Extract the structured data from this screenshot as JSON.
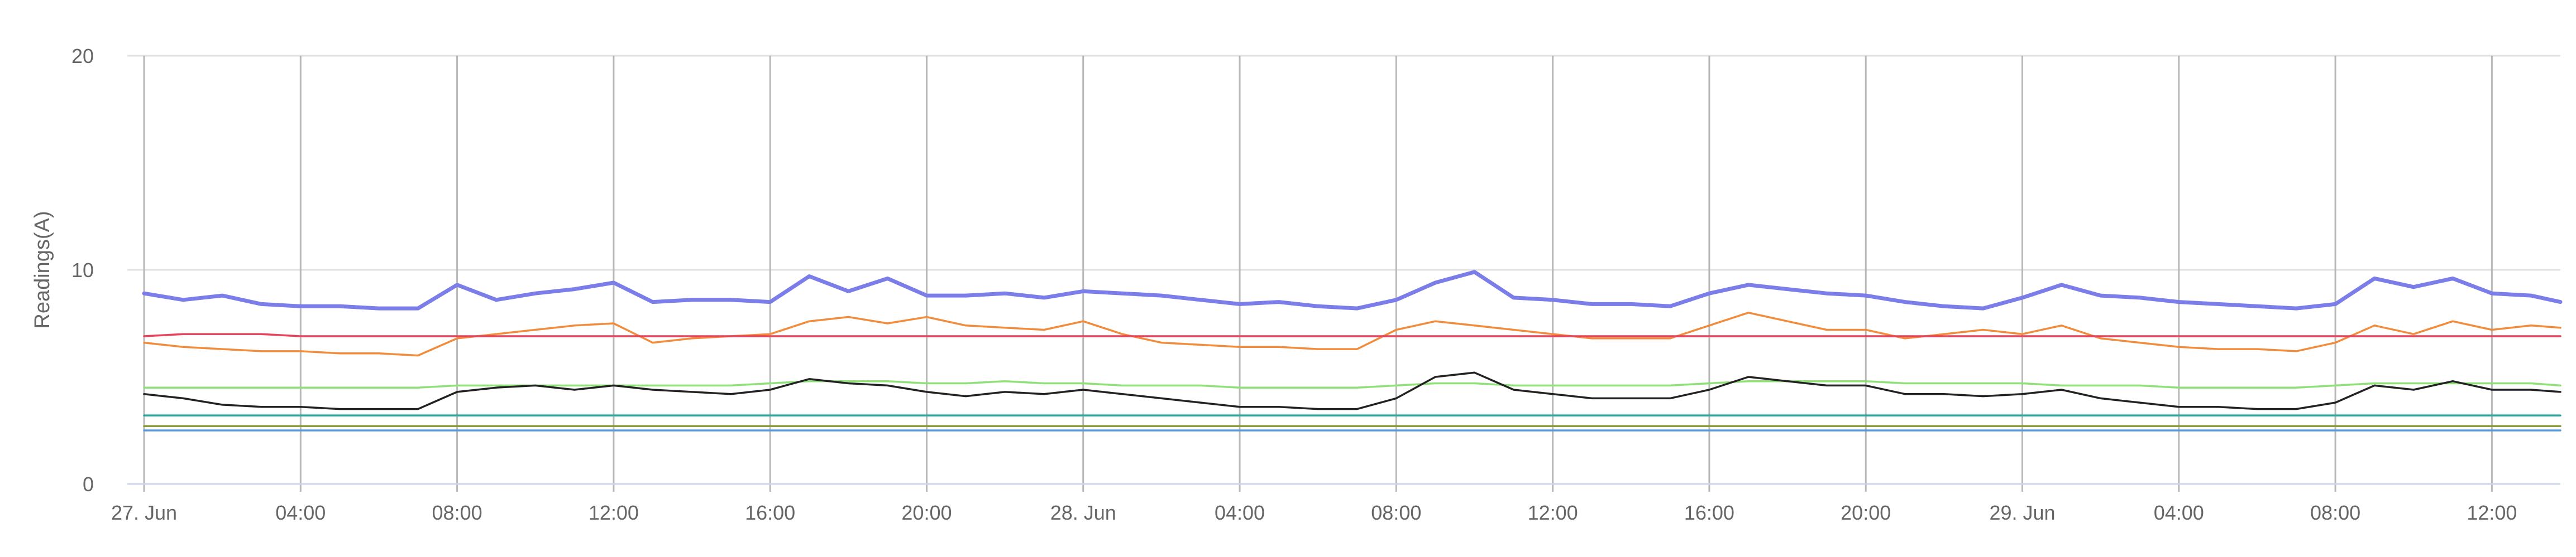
{
  "chart_data": {
    "type": "line",
    "title": "",
    "xlabel": "",
    "ylabel": "Readings(A)",
    "ylim": [
      0,
      20
    ],
    "yticks": [
      "0",
      "10",
      "20"
    ],
    "xlim": [
      "2024-06-27T00:00",
      "2024-06-29T13:45"
    ],
    "xticks": [
      {
        "t": "2024-06-27T00:00",
        "label": "27. Jun"
      },
      {
        "t": "2024-06-27T04:00",
        "label": "04:00"
      },
      {
        "t": "2024-06-27T08:00",
        "label": "08:00"
      },
      {
        "t": "2024-06-27T12:00",
        "label": "12:00"
      },
      {
        "t": "2024-06-27T16:00",
        "label": "16:00"
      },
      {
        "t": "2024-06-27T20:00",
        "label": "20:00"
      },
      {
        "t": "2024-06-28T00:00",
        "label": "28. Jun"
      },
      {
        "t": "2024-06-28T04:00",
        "label": "04:00"
      },
      {
        "t": "2024-06-28T08:00",
        "label": "08:00"
      },
      {
        "t": "2024-06-28T12:00",
        "label": "12:00"
      },
      {
        "t": "2024-06-28T16:00",
        "label": "16:00"
      },
      {
        "t": "2024-06-28T20:00",
        "label": "20:00"
      },
      {
        "t": "2024-06-29T00:00",
        "label": "29. Jun"
      },
      {
        "t": "2024-06-29T04:00",
        "label": "04:00"
      },
      {
        "t": "2024-06-29T08:00",
        "label": "08:00"
      },
      {
        "t": "2024-06-29T12:00",
        "label": "12:00"
      }
    ],
    "grid": true,
    "legend": "none",
    "x": [
      "2024-06-27T00:00",
      "2024-06-27T01:00",
      "2024-06-27T02:00",
      "2024-06-27T03:00",
      "2024-06-27T04:00",
      "2024-06-27T05:00",
      "2024-06-27T06:00",
      "2024-06-27T07:00",
      "2024-06-27T08:00",
      "2024-06-27T09:00",
      "2024-06-27T10:00",
      "2024-06-27T11:00",
      "2024-06-27T12:00",
      "2024-06-27T13:00",
      "2024-06-27T14:00",
      "2024-06-27T15:00",
      "2024-06-27T16:00",
      "2024-06-27T17:00",
      "2024-06-27T18:00",
      "2024-06-27T19:00",
      "2024-06-27T20:00",
      "2024-06-27T21:00",
      "2024-06-27T22:00",
      "2024-06-27T23:00",
      "2024-06-28T00:00",
      "2024-06-28T01:00",
      "2024-06-28T02:00",
      "2024-06-28T03:00",
      "2024-06-28T04:00",
      "2024-06-28T05:00",
      "2024-06-28T06:00",
      "2024-06-28T07:00",
      "2024-06-28T08:00",
      "2024-06-28T09:00",
      "2024-06-28T10:00",
      "2024-06-28T11:00",
      "2024-06-28T12:00",
      "2024-06-28T13:00",
      "2024-06-28T14:00",
      "2024-06-28T15:00",
      "2024-06-28T16:00",
      "2024-06-28T17:00",
      "2024-06-28T18:00",
      "2024-06-28T19:00",
      "2024-06-28T20:00",
      "2024-06-28T21:00",
      "2024-06-28T22:00",
      "2024-06-28T23:00",
      "2024-06-29T00:00",
      "2024-06-29T01:00",
      "2024-06-29T02:00",
      "2024-06-29T03:00",
      "2024-06-29T04:00",
      "2024-06-29T05:00",
      "2024-06-29T06:00",
      "2024-06-29T07:00",
      "2024-06-29T08:00",
      "2024-06-29T09:00",
      "2024-06-29T10:00",
      "2024-06-29T11:00",
      "2024-06-29T12:00",
      "2024-06-29T13:00",
      "2024-06-29T13:45"
    ],
    "series": [
      {
        "color": "#7b7de8",
        "values": [
          8.9,
          8.6,
          8.8,
          8.4,
          8.3,
          8.3,
          8.2,
          8.2,
          9.3,
          8.6,
          8.9,
          9.1,
          9.4,
          8.5,
          8.6,
          8.6,
          8.5,
          9.7,
          9.0,
          9.6,
          8.8,
          8.8,
          8.9,
          8.7,
          9.0,
          8.9,
          8.8,
          8.6,
          8.4,
          8.5,
          8.3,
          8.2,
          8.6,
          9.4,
          9.9,
          8.7,
          8.6,
          8.4,
          8.4,
          8.3,
          8.9,
          9.3,
          9.1,
          8.9,
          8.8,
          8.5,
          8.3,
          8.2,
          8.7,
          9.3,
          8.8,
          8.7,
          8.5,
          8.4,
          8.3,
          8.2,
          8.4,
          9.6,
          9.2,
          9.6,
          8.9,
          8.8,
          8.5
        ]
      },
      {
        "color": "#f08c3c",
        "values": [
          6.6,
          6.4,
          6.3,
          6.2,
          6.2,
          6.1,
          6.1,
          6.0,
          6.8,
          7.0,
          7.2,
          7.4,
          7.5,
          6.6,
          6.8,
          6.9,
          7.0,
          7.6,
          7.8,
          7.5,
          7.8,
          7.4,
          7.3,
          7.2,
          7.6,
          7.0,
          6.6,
          6.5,
          6.4,
          6.4,
          6.3,
          6.3,
          7.2,
          7.6,
          7.4,
          7.2,
          7.0,
          6.8,
          6.8,
          6.8,
          7.4,
          8.0,
          7.6,
          7.2,
          7.2,
          6.8,
          7.0,
          7.2,
          7.0,
          7.4,
          6.8,
          6.6,
          6.4,
          6.3,
          6.3,
          6.2,
          6.6,
          7.4,
          7.0,
          7.6,
          7.2,
          7.4,
          7.3
        ]
      },
      {
        "color": "#e8435a",
        "values": [
          6.9,
          7.0,
          7.0,
          7.0,
          6.9,
          6.9,
          6.9,
          6.9,
          6.9,
          6.9,
          6.9,
          6.9,
          6.9,
          6.9,
          6.9,
          6.9,
          6.9,
          6.9,
          6.9,
          6.9,
          6.9,
          6.9,
          6.9,
          6.9,
          6.9,
          6.9,
          6.9,
          6.9,
          6.9,
          6.9,
          6.9,
          6.9,
          6.9,
          6.9,
          6.9,
          6.9,
          6.9,
          6.9,
          6.9,
          6.9,
          6.9,
          6.9,
          6.9,
          6.9,
          6.9,
          6.9,
          6.9,
          6.9,
          6.9,
          6.9,
          6.9,
          6.9,
          6.9,
          6.9,
          6.9,
          6.9,
          6.9,
          6.9,
          6.9,
          6.9,
          6.9,
          6.9,
          6.9
        ]
      },
      {
        "color": "#90e07a",
        "values": [
          4.5,
          4.5,
          4.5,
          4.5,
          4.5,
          4.5,
          4.5,
          4.5,
          4.6,
          4.6,
          4.6,
          4.6,
          4.6,
          4.6,
          4.6,
          4.6,
          4.7,
          4.8,
          4.8,
          4.8,
          4.7,
          4.7,
          4.8,
          4.7,
          4.7,
          4.6,
          4.6,
          4.6,
          4.5,
          4.5,
          4.5,
          4.5,
          4.6,
          4.7,
          4.7,
          4.6,
          4.6,
          4.6,
          4.6,
          4.6,
          4.7,
          4.8,
          4.8,
          4.8,
          4.8,
          4.7,
          4.7,
          4.7,
          4.7,
          4.6,
          4.6,
          4.6,
          4.5,
          4.5,
          4.5,
          4.5,
          4.6,
          4.7,
          4.7,
          4.7,
          4.7,
          4.7,
          4.6
        ]
      },
      {
        "color": "#222222",
        "values": [
          4.2,
          4.0,
          3.7,
          3.6,
          3.6,
          3.5,
          3.5,
          3.5,
          4.3,
          4.5,
          4.6,
          4.4,
          4.6,
          4.4,
          4.3,
          4.2,
          4.4,
          4.9,
          4.7,
          4.6,
          4.3,
          4.1,
          4.3,
          4.2,
          4.4,
          4.2,
          4.0,
          3.8,
          3.6,
          3.6,
          3.5,
          3.5,
          4.0,
          5.0,
          5.2,
          4.4,
          4.2,
          4.0,
          4.0,
          4.0,
          4.4,
          5.0,
          4.8,
          4.6,
          4.6,
          4.2,
          4.2,
          4.1,
          4.2,
          4.4,
          4.0,
          3.8,
          3.6,
          3.6,
          3.5,
          3.5,
          3.8,
          4.6,
          4.4,
          4.8,
          4.4,
          4.4,
          4.3
        ]
      },
      {
        "color": "#2aa8a0",
        "values": [
          3.2,
          3.2,
          3.2,
          3.2,
          3.2,
          3.2,
          3.2,
          3.2,
          3.2,
          3.2,
          3.2,
          3.2,
          3.2,
          3.2,
          3.2,
          3.2,
          3.2,
          3.2,
          3.2,
          3.2,
          3.2,
          3.2,
          3.2,
          3.2,
          3.2,
          3.2,
          3.2,
          3.2,
          3.2,
          3.2,
          3.2,
          3.2,
          3.2,
          3.2,
          3.2,
          3.2,
          3.2,
          3.2,
          3.2,
          3.2,
          3.2,
          3.2,
          3.2,
          3.2,
          3.2,
          3.2,
          3.2,
          3.2,
          3.2,
          3.2,
          3.2,
          3.2,
          3.2,
          3.2,
          3.2,
          3.2,
          3.2,
          3.2,
          3.2,
          3.2,
          3.2,
          3.2,
          3.2
        ]
      },
      {
        "color": "#8c9a3a",
        "values": [
          2.7,
          2.7,
          2.7,
          2.7,
          2.7,
          2.7,
          2.7,
          2.7,
          2.7,
          2.7,
          2.7,
          2.7,
          2.7,
          2.7,
          2.7,
          2.7,
          2.7,
          2.7,
          2.7,
          2.7,
          2.7,
          2.7,
          2.7,
          2.7,
          2.7,
          2.7,
          2.7,
          2.7,
          2.7,
          2.7,
          2.7,
          2.7,
          2.7,
          2.7,
          2.7,
          2.7,
          2.7,
          2.7,
          2.7,
          2.7,
          2.7,
          2.7,
          2.7,
          2.7,
          2.7,
          2.7,
          2.7,
          2.7,
          2.7,
          2.7,
          2.7,
          2.7,
          2.7,
          2.7,
          2.7,
          2.7,
          2.7,
          2.7,
          2.7,
          2.7,
          2.7,
          2.7,
          2.7
        ]
      },
      {
        "color": "#5b9bd5",
        "values": [
          2.5,
          2.5,
          2.5,
          2.5,
          2.5,
          2.5,
          2.5,
          2.5,
          2.5,
          2.5,
          2.5,
          2.5,
          2.5,
          2.5,
          2.5,
          2.5,
          2.5,
          2.5,
          2.5,
          2.5,
          2.5,
          2.5,
          2.5,
          2.5,
          2.5,
          2.5,
          2.5,
          2.5,
          2.5,
          2.5,
          2.5,
          2.5,
          2.5,
          2.5,
          2.5,
          2.5,
          2.5,
          2.5,
          2.5,
          2.5,
          2.5,
          2.5,
          2.5,
          2.5,
          2.5,
          2.5,
          2.5,
          2.5,
          2.5,
          2.5,
          2.5,
          2.5,
          2.5,
          2.5,
          2.5,
          2.5,
          2.5,
          2.5,
          2.5,
          2.5,
          2.5,
          2.5,
          2.5
        ]
      }
    ]
  }
}
